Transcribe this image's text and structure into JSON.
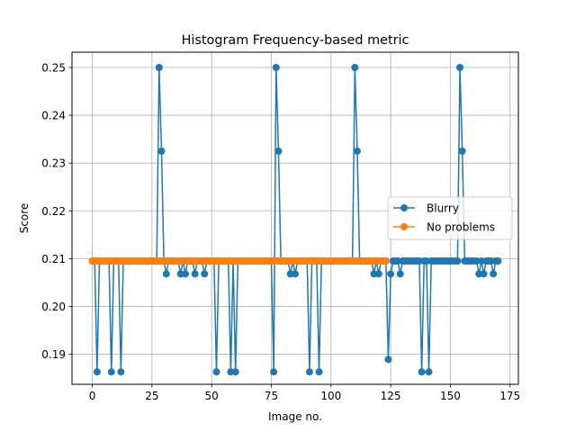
{
  "chart_data": {
    "type": "line",
    "title": "Histogram Frequency-based metric",
    "xlabel": "Image no.",
    "ylabel": "Score",
    "xlim": [
      -8.5,
      178.5
    ],
    "ylim": [
      0.1837,
      0.2532
    ],
    "xticks": [
      0,
      25,
      50,
      75,
      100,
      125,
      150,
      175
    ],
    "yticks": [
      0.19,
      0.2,
      0.21,
      0.22,
      0.23,
      0.24,
      0.25
    ],
    "grid": true,
    "legend": "center-right",
    "series": [
      {
        "name": "Blurry",
        "color": "#1f77b4",
        "x": [
          0,
          1,
          2,
          3,
          4,
          5,
          6,
          7,
          8,
          9,
          10,
          11,
          12,
          13,
          14,
          15,
          16,
          17,
          18,
          19,
          20,
          21,
          22,
          23,
          24,
          25,
          26,
          27,
          28,
          29,
          30,
          31,
          32,
          33,
          34,
          35,
          36,
          37,
          38,
          39,
          40,
          41,
          42,
          43,
          44,
          45,
          46,
          47,
          48,
          49,
          50,
          51,
          52,
          53,
          54,
          55,
          56,
          57,
          58,
          59,
          60,
          61,
          62,
          63,
          64,
          65,
          66,
          67,
          68,
          69,
          70,
          71,
          72,
          73,
          74,
          75,
          76,
          77,
          78,
          79,
          80,
          81,
          82,
          83,
          84,
          85,
          86,
          87,
          88,
          89,
          90,
          91,
          92,
          93,
          94,
          95,
          96,
          97,
          98,
          99,
          100,
          101,
          102,
          103,
          104,
          105,
          106,
          107,
          108,
          109,
          110,
          111,
          112,
          113,
          114,
          115,
          116,
          117,
          118,
          119,
          120,
          121,
          122,
          123,
          124,
          125,
          126,
          127,
          128,
          129,
          130,
          131,
          132,
          133,
          134,
          135,
          136,
          137,
          138,
          139,
          140,
          141,
          142,
          143,
          144,
          145,
          146,
          147,
          148,
          149,
          150,
          151,
          152,
          153,
          154,
          155,
          156,
          157,
          158,
          159,
          160,
          161,
          162,
          163,
          164,
          165,
          166,
          167,
          168,
          169,
          170
        ],
        "y": [
          0.2095,
          0.2095,
          0.1863,
          0.2095,
          0.2095,
          0.2095,
          0.2095,
          0.2095,
          0.1863,
          0.2095,
          0.2095,
          0.2095,
          0.1863,
          0.2095,
          0.2095,
          0.2095,
          0.2095,
          0.2095,
          0.2095,
          0.2095,
          0.2095,
          0.2095,
          0.2095,
          0.2095,
          0.2095,
          0.2095,
          0.2095,
          0.2095,
          0.25,
          0.2325,
          0.2095,
          0.2068,
          0.2095,
          0.2095,
          0.2095,
          0.2095,
          0.2095,
          0.2068,
          0.2095,
          0.2068,
          0.2095,
          0.2095,
          0.2095,
          0.2068,
          0.2095,
          0.2095,
          0.2095,
          0.2068,
          0.2095,
          0.2095,
          0.2095,
          0.2095,
          0.1863,
          0.2095,
          0.2095,
          0.2095,
          0.2095,
          0.2095,
          0.1863,
          0.2095,
          0.1863,
          0.2095,
          0.2095,
          0.2095,
          0.2095,
          0.2095,
          0.2095,
          0.2095,
          0.2095,
          0.2095,
          0.2095,
          0.2095,
          0.2095,
          0.2095,
          0.2095,
          0.2095,
          0.1863,
          0.25,
          0.2325,
          0.2095,
          0.2095,
          0.2095,
          0.2095,
          0.2068,
          0.2095,
          0.2068,
          0.2095,
          0.2095,
          0.2095,
          0.2095,
          0.2095,
          0.1863,
          0.2095,
          0.2095,
          0.2095,
          0.1863,
          0.2095,
          0.2095,
          0.2095,
          0.2095,
          0.2095,
          0.2095,
          0.2095,
          0.2095,
          0.2095,
          0.2095,
          0.2095,
          0.2095,
          0.2095,
          0.2095,
          0.25,
          0.2325,
          0.2095,
          0.2095,
          0.2095,
          0.2095,
          0.2095,
          0.2095,
          0.2068,
          0.2095,
          0.2068,
          0.2095,
          0.2095,
          0.2095,
          0.1889,
          0.2068,
          0.2095,
          0.2095,
          0.2095,
          0.2068,
          0.2095,
          0.2095,
          0.2095,
          0.2095,
          0.2095,
          0.2095,
          0.2095,
          0.2095,
          0.1863,
          0.2095,
          0.2095,
          0.1863,
          0.2095,
          0.2095,
          0.2095,
          0.2095,
          0.2095,
          0.2095,
          0.2095,
          0.2095,
          0.2095,
          0.2095,
          0.2095,
          0.2095,
          0.25,
          0.2325,
          0.2095,
          0.2095,
          0.2095,
          0.2095,
          0.2095,
          0.2095,
          0.2068,
          0.2095,
          0.2068,
          0.2095,
          0.2095,
          0.2095,
          0.2068,
          0.2095,
          0.2095
        ]
      },
      {
        "name": "No problems",
        "color": "#ff7f0e",
        "x": [
          0,
          1,
          2,
          3,
          4,
          5,
          6,
          7,
          8,
          9,
          10,
          11,
          12,
          13,
          14,
          15,
          16,
          17,
          18,
          19,
          20,
          21,
          22,
          23,
          24,
          25,
          26,
          27,
          28,
          29,
          30,
          31,
          32,
          33,
          34,
          35,
          36,
          37,
          38,
          39,
          40,
          41,
          42,
          43,
          44,
          45,
          46,
          47,
          48,
          49,
          50,
          51,
          52,
          53,
          54,
          55,
          56,
          57,
          58,
          59,
          60,
          61,
          62,
          63,
          64,
          65,
          66,
          67,
          68,
          69,
          70,
          71,
          72,
          73,
          74,
          75,
          76,
          77,
          78,
          79,
          80,
          81,
          82,
          83,
          84,
          85,
          86,
          87,
          88,
          89,
          90,
          91,
          92,
          93,
          94,
          95,
          96,
          97,
          98,
          99,
          100,
          101,
          102,
          103,
          104,
          105,
          106,
          107,
          108,
          109,
          110,
          111,
          112,
          113,
          114,
          115,
          116,
          117,
          118,
          119,
          120,
          121,
          122,
          123
        ],
        "y": [
          0.2095,
          0.2095,
          0.2095,
          0.2095,
          0.2095,
          0.2095,
          0.2095,
          0.2095,
          0.2095,
          0.2095,
          0.2095,
          0.2095,
          0.2095,
          0.2095,
          0.2095,
          0.2095,
          0.2095,
          0.2095,
          0.2095,
          0.2095,
          0.2095,
          0.2095,
          0.2095,
          0.2095,
          0.2095,
          0.2095,
          0.2095,
          0.2095,
          0.2095,
          0.2095,
          0.2095,
          0.2095,
          0.2095,
          0.2095,
          0.2095,
          0.2095,
          0.2095,
          0.2095,
          0.2095,
          0.2095,
          0.2095,
          0.2095,
          0.2095,
          0.2095,
          0.2095,
          0.2095,
          0.2095,
          0.2095,
          0.2095,
          0.2095,
          0.2095,
          0.2095,
          0.2095,
          0.2095,
          0.2095,
          0.2095,
          0.2095,
          0.2095,
          0.2095,
          0.2095,
          0.2095,
          0.2095,
          0.2095,
          0.2095,
          0.2095,
          0.2095,
          0.2095,
          0.2095,
          0.2095,
          0.2095,
          0.2095,
          0.2095,
          0.2095,
          0.2095,
          0.2095,
          0.2095,
          0.2095,
          0.2095,
          0.2095,
          0.2095,
          0.2095,
          0.2095,
          0.2095,
          0.2095,
          0.2095,
          0.2095,
          0.2095,
          0.2095,
          0.2095,
          0.2095,
          0.2095,
          0.2095,
          0.2095,
          0.2095,
          0.2095,
          0.2095,
          0.2095,
          0.2095,
          0.2095,
          0.2095,
          0.2095,
          0.2095,
          0.2095,
          0.2095,
          0.2095,
          0.2095,
          0.2095,
          0.2095,
          0.2095,
          0.2095,
          0.2095,
          0.2095,
          0.2095,
          0.2095,
          0.2095,
          0.2095,
          0.2095,
          0.2095,
          0.2095,
          0.2095,
          0.2095,
          0.2095,
          0.2095,
          0.2095
        ]
      }
    ]
  }
}
